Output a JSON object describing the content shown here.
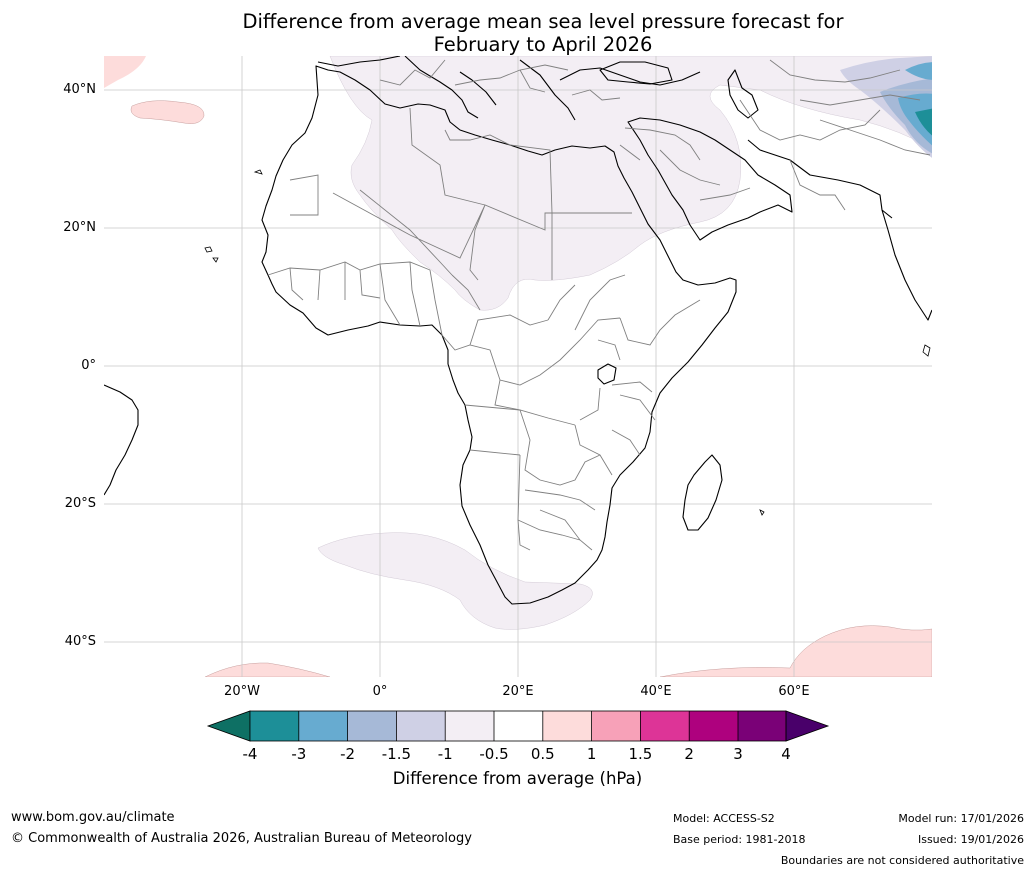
{
  "title": {
    "line1": "Difference from average mean sea level pressure forecast for",
    "line2": "February to April 2026"
  },
  "axes": {
    "lat_labels": [
      "40°N",
      "20°N",
      "0°",
      "20°S",
      "40°S"
    ],
    "lon_labels": [
      "20°W",
      "0°",
      "20°E",
      "40°E",
      "60°E"
    ]
  },
  "colorbar": {
    "ticks": [
      "-4",
      "-3",
      "-2",
      "-1.5",
      "-1",
      "-0.5",
      "0.5",
      "1",
      "1.5",
      "2",
      "3",
      "4"
    ],
    "colors": [
      "#0e7064",
      "#1d8f98",
      "#67abd0",
      "#a6b9d7",
      "#cfd0e5",
      "#f3eef4",
      "#ffffff",
      "#fddcdb",
      "#f7a1b8",
      "#dd3497",
      "#ae017e",
      "#7a0177",
      "#49006a"
    ],
    "label": "Difference from average (hPa)"
  },
  "footer": {
    "website": "www.bom.gov.au/climate",
    "copyright": "© Commonwealth of Australia 2026, Australian Bureau of Meteorology",
    "model": "Model: ACCESS-S2",
    "base_period": "Base period: 1981-2018",
    "model_run": "Model run: 17/01/2026",
    "issued": "Issued: 19/01/2026",
    "disclaimer": "Boundaries are not considered authoritative"
  }
}
